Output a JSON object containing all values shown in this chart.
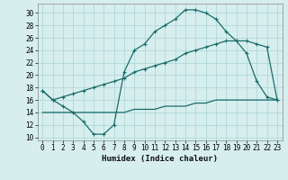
{
  "xlabel": "Humidex (Indice chaleur)",
  "xlim": [
    -0.5,
    23.5
  ],
  "ylim": [
    9.5,
    31.5
  ],
  "yticks": [
    10,
    12,
    14,
    16,
    18,
    20,
    22,
    24,
    26,
    28,
    30
  ],
  "xticks": [
    0,
    1,
    2,
    3,
    4,
    5,
    6,
    7,
    8,
    9,
    10,
    11,
    12,
    13,
    14,
    15,
    16,
    17,
    18,
    19,
    20,
    21,
    22,
    23
  ],
  "background_color": "#d7eeee",
  "grid_color": "#b0d8d8",
  "line_color": "#1a6b6b",
  "curve1_x": [
    0,
    1,
    2,
    3,
    4,
    5,
    6,
    7,
    8,
    9,
    10,
    11,
    12,
    13,
    14,
    15,
    16,
    17,
    18,
    19,
    20,
    21,
    22,
    23
  ],
  "curve1_y": [
    17.5,
    16.0,
    15.0,
    14.0,
    12.5,
    10.5,
    10.5,
    12.0,
    20.5,
    24.0,
    25.0,
    27.0,
    28.0,
    29.0,
    30.5,
    30.5,
    30.0,
    29.0,
    27.0,
    25.5,
    23.5,
    19.0,
    16.5,
    16.0
  ],
  "curve2_x": [
    0,
    1,
    2,
    3,
    4,
    5,
    6,
    7,
    8,
    9,
    10,
    11,
    12,
    13,
    14,
    15,
    16,
    17,
    18,
    19,
    20,
    21,
    22,
    23
  ],
  "curve2_y": [
    17.5,
    16.0,
    16.5,
    17.0,
    17.5,
    18.0,
    18.5,
    19.0,
    19.5,
    20.5,
    21.0,
    21.5,
    22.0,
    22.5,
    23.5,
    24.0,
    24.5,
    25.0,
    25.5,
    25.5,
    25.5,
    25.0,
    24.5,
    16.0
  ],
  "curve3_x": [
    0,
    1,
    2,
    3,
    4,
    5,
    6,
    7,
    8,
    9,
    10,
    11,
    12,
    13,
    14,
    15,
    16,
    17,
    18,
    19,
    20,
    21,
    22,
    23
  ],
  "curve3_y": [
    14.0,
    14.0,
    14.0,
    14.0,
    14.0,
    14.0,
    14.0,
    14.0,
    14.0,
    14.5,
    14.5,
    14.5,
    15.0,
    15.0,
    15.0,
    15.5,
    15.5,
    16.0,
    16.0,
    16.0,
    16.0,
    16.0,
    16.0,
    16.0
  ],
  "tick_fontsize": 5.5,
  "xlabel_fontsize": 6.5
}
